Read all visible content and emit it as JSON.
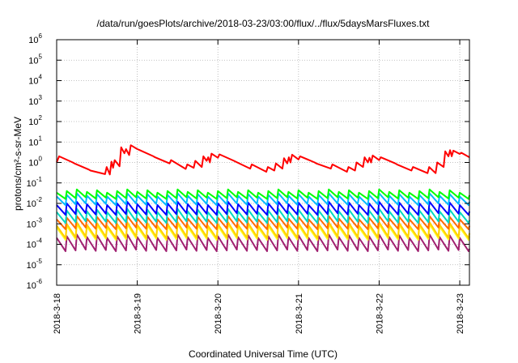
{
  "chart_data": {
    "type": "line",
    "title": "/data/run/goesPlots/archive/2018-03-23/03:00/flux/../flux/5daysMarsFluxes.txt",
    "xlabel": "Coordinated Universal Time (UTC)",
    "ylabel": "protons/cm²-s-sr-MeV",
    "y_scale": "log",
    "ylim": [
      1e-06,
      1000000.0
    ],
    "y_ticks": [
      {
        "value": -6,
        "base": "10",
        "exp": "-6"
      },
      {
        "value": -5,
        "base": "10",
        "exp": "-5"
      },
      {
        "value": -4,
        "base": "10",
        "exp": "-4"
      },
      {
        "value": -3,
        "base": "10",
        "exp": "-3"
      },
      {
        "value": -2,
        "base": "10",
        "exp": "-2"
      },
      {
        "value": -1,
        "base": "10",
        "exp": "-1"
      },
      {
        "value": 0,
        "base": "10",
        "exp": "0"
      },
      {
        "value": 1,
        "base": "10",
        "exp": "1"
      },
      {
        "value": 2,
        "base": "10",
        "exp": "2"
      },
      {
        "value": 3,
        "base": "10",
        "exp": "3"
      },
      {
        "value": 4,
        "base": "10",
        "exp": "4"
      },
      {
        "value": 5,
        "base": "10",
        "exp": "5"
      },
      {
        "value": 6,
        "base": "10",
        "exp": "6"
      }
    ],
    "x_ticks": [
      {
        "value": 0,
        "label": "2018-3-18"
      },
      {
        "value": 1,
        "label": "2018-3-19"
      },
      {
        "value": 2,
        "label": "2018-3-20"
      },
      {
        "value": 3,
        "label": "2018-3-21"
      },
      {
        "value": 4,
        "label": "2018-3-22"
      },
      {
        "value": 5,
        "label": "2018-3-23"
      }
    ],
    "xlim": [
      0,
      5.12
    ],
    "grid": true,
    "series": [
      {
        "color": "#ff0000",
        "x": [
          0.0,
          0.03,
          0.2,
          0.22,
          0.4,
          0.42,
          0.6,
          0.62,
          0.66,
          0.68,
          0.7,
          0.72,
          0.78,
          0.8,
          0.84,
          0.86,
          0.9,
          0.92,
          1.0,
          1.02,
          1.2,
          1.22,
          1.4,
          1.42,
          1.6,
          1.62,
          1.7,
          1.72,
          1.8,
          1.82,
          1.86,
          1.88,
          1.9,
          1.92,
          2.0,
          2.02,
          2.2,
          2.22,
          2.4,
          2.42,
          2.6,
          2.62,
          2.7,
          2.72,
          2.8,
          2.82,
          2.86,
          2.88,
          2.9,
          2.92,
          3.0,
          3.02,
          3.2,
          3.22,
          3.4,
          3.42,
          3.6,
          3.62,
          3.7,
          3.72,
          3.8,
          3.82,
          3.86,
          3.88,
          3.9,
          3.92,
          4.0,
          4.02,
          4.2,
          4.22,
          4.4,
          4.42,
          4.6,
          4.62,
          4.7,
          4.72,
          4.8,
          4.82,
          4.86,
          4.88,
          4.9,
          4.92,
          5.0,
          5.02,
          5.12
        ],
        "y": [
          1.0,
          2.0,
          1.0,
          0.9,
          0.45,
          0.4,
          0.27,
          0.6,
          0.26,
          1.1,
          0.55,
          1.3,
          0.65,
          5.5,
          2.8,
          4.5,
          2.3,
          7.0,
          4.5,
          4.2,
          2.0,
          1.8,
          0.9,
          1.3,
          0.48,
          0.8,
          0.55,
          1.2,
          0.6,
          2.0,
          1.2,
          1.8,
          1.0,
          2.7,
          1.7,
          2.5,
          1.2,
          1.1,
          0.5,
          0.8,
          0.35,
          0.6,
          0.4,
          0.9,
          0.5,
          1.6,
          0.9,
          1.8,
          1.0,
          2.4,
          1.4,
          2.0,
          1.0,
          0.9,
          0.5,
          0.8,
          0.35,
          0.6,
          0.4,
          1.0,
          0.6,
          1.8,
          1.0,
          1.7,
          1.0,
          2.2,
          1.3,
          1.8,
          0.9,
          0.8,
          0.4,
          0.6,
          0.3,
          0.6,
          0.3,
          1.0,
          0.6,
          3.5,
          2.0,
          4.0,
          2.0,
          3.8,
          2.6,
          3.0,
          1.8
        ]
      }
    ],
    "sawtooth_series": [
      {
        "color": "#00ff00",
        "low": 0.018,
        "high": 0.04,
        "end": 0.025
      },
      {
        "color": "#00b8ff",
        "low": 0.009,
        "high": 0.026,
        "end": 0.012
      },
      {
        "color": "#0000ff",
        "low": 0.003,
        "high": 0.01,
        "end": 0.004
      },
      {
        "color": "#00d8c0",
        "low": 0.0012,
        "high": 0.0045,
        "end": 0.0015
      },
      {
        "color": "#ff6a00",
        "low": 0.0006,
        "high": 0.002,
        "end": 0.0008
      },
      {
        "color": "#ffd000",
        "low": 0.00022,
        "high": 0.001,
        "end": 0.00035
      },
      {
        "color": "#ffff20",
        "low": 0.00018,
        "high": 0.0008,
        "end": 0.00025
      },
      {
        "color": "#a02070",
        "low": 5e-05,
        "high": 0.00025,
        "end": 6e-05
      }
    ],
    "sawtooth_period_days": 0.125
  }
}
